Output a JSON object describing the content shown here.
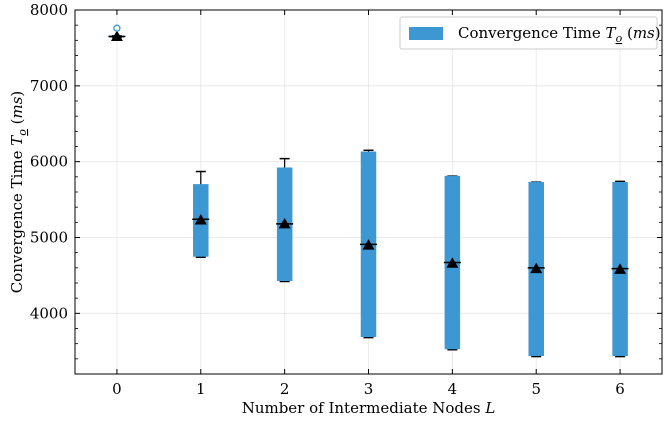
{
  "chart_data": {
    "type": "box",
    "xlabel": "Number of Intermediate Nodes L",
    "ylabel": "Convergence Time T_o (ms)",
    "xlim": [
      -0.5,
      6.5
    ],
    "ylim": [
      3200,
      8000
    ],
    "x_ticks": [
      0,
      1,
      2,
      3,
      4,
      5,
      6
    ],
    "y_ticks": [
      4000,
      5000,
      6000,
      7000,
      8000
    ],
    "grid": true,
    "legend_position": "top-right",
    "series": [
      {
        "name": "Convergence Time T_o (ms)",
        "color": "#3d97d3",
        "boxes": [
          {
            "x": 0,
            "q1": 7640,
            "median": 7650,
            "q3": 7660,
            "whisker_low": 7640,
            "whisker_high": 7660,
            "mean": 7650,
            "outliers": [
              7760
            ]
          },
          {
            "x": 1,
            "q1": 4750,
            "median": 5240,
            "q3": 5700,
            "whisker_low": 4740,
            "whisker_high": 5870,
            "mean": 5230,
            "outliers": []
          },
          {
            "x": 2,
            "q1": 4430,
            "median": 5180,
            "q3": 5920,
            "whisker_low": 4420,
            "whisker_high": 6040,
            "mean": 5180,
            "outliers": []
          },
          {
            "x": 3,
            "q1": 3690,
            "median": 4910,
            "q3": 6130,
            "whisker_low": 3680,
            "whisker_high": 6150,
            "mean": 4900,
            "outliers": []
          },
          {
            "x": 4,
            "q1": 3530,
            "median": 4670,
            "q3": 5810,
            "whisker_low": 3520,
            "whisker_high": 5810,
            "mean": 4660,
            "outliers": []
          },
          {
            "x": 5,
            "q1": 3440,
            "median": 4600,
            "q3": 5730,
            "whisker_low": 3430,
            "whisker_high": 5730,
            "mean": 4590,
            "outliers": []
          },
          {
            "x": 6,
            "q1": 3440,
            "median": 4590,
            "q3": 5730,
            "whisker_low": 3430,
            "whisker_high": 5740,
            "mean": 4580,
            "outliers": []
          }
        ]
      }
    ]
  }
}
